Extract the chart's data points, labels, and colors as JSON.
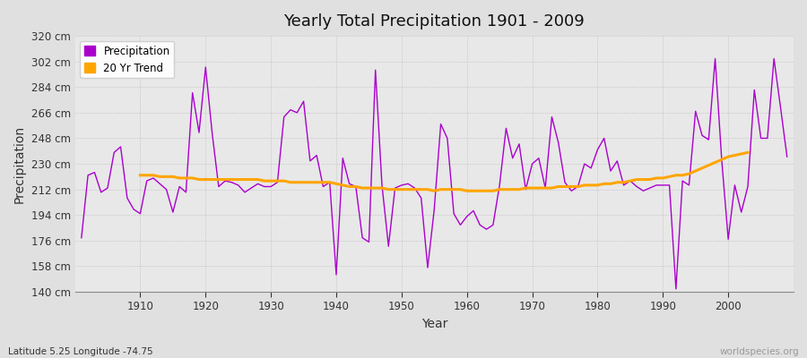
{
  "title": "Yearly Total Precipitation 1901 - 2009",
  "xlabel": "Year",
  "ylabel": "Precipitation",
  "subtitle": "Latitude 5.25 Longitude -74.75",
  "watermark": "worldspecies.org",
  "fig_bg_color": "#e0e0e0",
  "plot_bg_color": "#e8e8e8",
  "precip_color": "#aa00cc",
  "trend_color": "#FFA500",
  "ylim": [
    140,
    320
  ],
  "yticks": [
    140,
    158,
    176,
    194,
    212,
    230,
    248,
    266,
    284,
    302,
    320
  ],
  "xlim": [
    1901,
    2009
  ],
  "xticks": [
    1910,
    1920,
    1930,
    1940,
    1950,
    1960,
    1970,
    1980,
    1990,
    2000
  ],
  "years": [
    1901,
    1902,
    1903,
    1904,
    1905,
    1906,
    1907,
    1908,
    1909,
    1910,
    1911,
    1912,
    1913,
    1914,
    1915,
    1916,
    1917,
    1918,
    1919,
    1920,
    1921,
    1922,
    1923,
    1924,
    1925,
    1926,
    1927,
    1928,
    1929,
    1930,
    1931,
    1932,
    1933,
    1934,
    1935,
    1936,
    1937,
    1938,
    1939,
    1940,
    1941,
    1942,
    1943,
    1944,
    1945,
    1946,
    1947,
    1948,
    1949,
    1950,
    1951,
    1952,
    1953,
    1954,
    1955,
    1956,
    1957,
    1958,
    1959,
    1960,
    1961,
    1962,
    1963,
    1964,
    1965,
    1966,
    1967,
    1968,
    1969,
    1970,
    1971,
    1972,
    1973,
    1974,
    1975,
    1976,
    1977,
    1978,
    1979,
    1980,
    1981,
    1982,
    1983,
    1984,
    1985,
    1986,
    1987,
    1988,
    1989,
    1990,
    1991,
    1992,
    1993,
    1994,
    1995,
    1996,
    1997,
    1998,
    1999,
    2000,
    2001,
    2002,
    2003,
    2004,
    2005,
    2006,
    2007,
    2008,
    2009
  ],
  "precip": [
    178,
    222,
    224,
    210,
    213,
    238,
    242,
    206,
    198,
    195,
    218,
    220,
    216,
    212,
    196,
    214,
    210,
    280,
    252,
    298,
    252,
    214,
    218,
    217,
    215,
    210,
    213,
    216,
    214,
    214,
    217,
    263,
    268,
    266,
    274,
    232,
    236,
    214,
    217,
    152,
    234,
    216,
    214,
    178,
    175,
    296,
    215,
    172,
    213,
    215,
    216,
    213,
    206,
    157,
    198,
    258,
    248,
    195,
    187,
    193,
    197,
    187,
    184,
    187,
    215,
    255,
    234,
    244,
    212,
    230,
    234,
    213,
    263,
    245,
    217,
    211,
    214,
    230,
    227,
    240,
    248,
    225,
    232,
    215,
    218,
    214,
    211,
    213,
    215,
    215,
    215,
    142,
    218,
    215,
    267,
    250,
    247,
    304,
    233,
    177,
    215,
    196,
    214,
    282,
    248,
    248,
    304,
    270,
    235
  ],
  "trend": [
    null,
    null,
    null,
    null,
    null,
    null,
    null,
    null,
    null,
    222,
    222,
    222,
    221,
    221,
    221,
    220,
    220,
    220,
    219,
    219,
    219,
    219,
    219,
    219,
    219,
    219,
    219,
    219,
    218,
    218,
    218,
    218,
    217,
    217,
    217,
    217,
    217,
    217,
    217,
    216,
    215,
    214,
    214,
    213,
    213,
    213,
    213,
    212,
    212,
    212,
    212,
    212,
    212,
    212,
    211,
    212,
    212,
    212,
    212,
    211,
    211,
    211,
    211,
    211,
    212,
    212,
    212,
    212,
    213,
    213,
    213,
    213,
    213,
    214,
    214,
    214,
    214,
    215,
    215,
    215,
    216,
    216,
    217,
    217,
    218,
    219,
    219,
    219,
    220,
    220,
    221,
    222,
    222,
    223,
    225,
    227,
    229,
    231,
    233,
    235,
    236,
    237,
    238,
    null,
    null,
    null,
    null,
    null,
    null
  ]
}
